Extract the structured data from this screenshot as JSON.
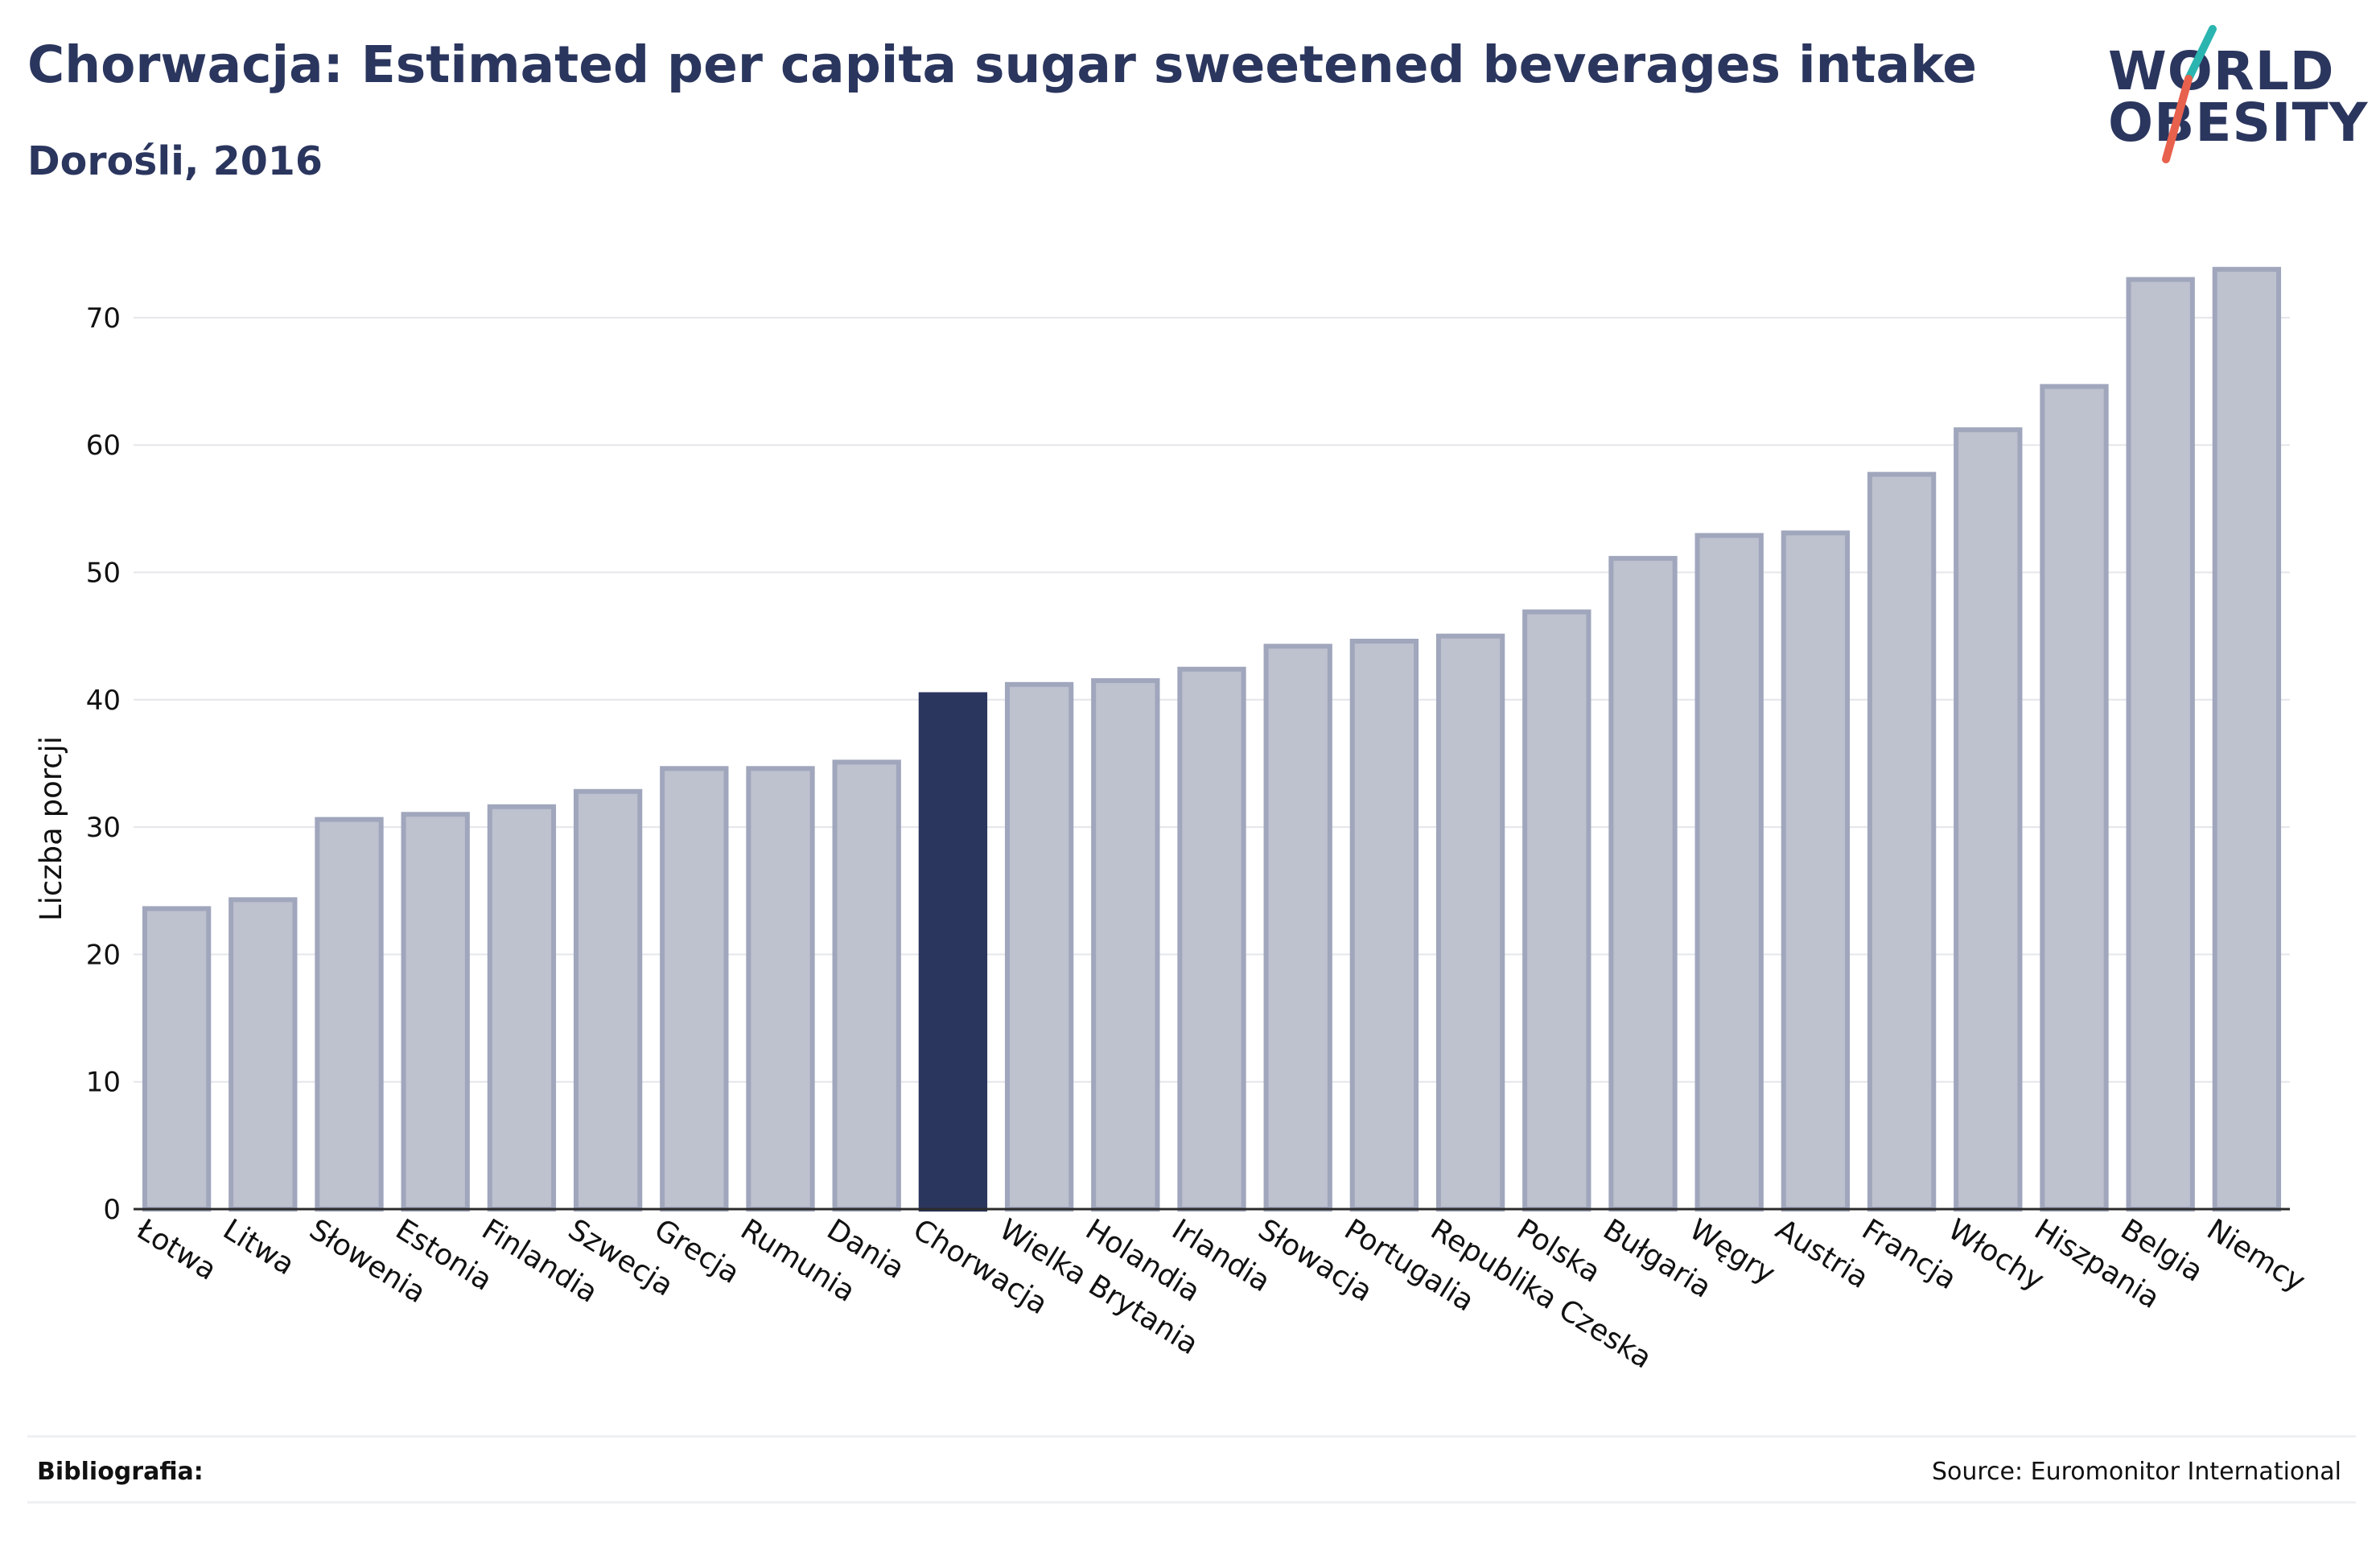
{
  "header": {
    "title": "Chorwacja: Estimated per capita sugar sweetened beverages intake",
    "subtitle": "Dorośli, 2016"
  },
  "logo": {
    "line1": "WORLD",
    "line2": "OBESITY",
    "colors": {
      "text": "#2b365e",
      "slash_top": "#2bb5b0",
      "slash_bottom": "#e8614d"
    }
  },
  "footer": {
    "bibliography_label": "Bibliografia:",
    "source": "Source: Euromonitor International"
  },
  "colors": {
    "highlight_bar": "#2b365e",
    "other_bar_fill": "#bec1ce",
    "other_bar_stroke": "#a0a6bc",
    "gridline": "#e4e6eb",
    "axis": "#2b2b2b",
    "text": "#111111"
  },
  "chart_data": {
    "type": "bar",
    "ylabel": "Liczba porcji",
    "xlabel": "",
    "ylim": [
      0,
      77
    ],
    "yticks": [
      0,
      10,
      20,
      30,
      40,
      50,
      60,
      70
    ],
    "grid": true,
    "highlight": "Chorwacja",
    "categories": [
      "Łotwa",
      "Litwa",
      "Słowenia",
      "Estonia",
      "Finlandia",
      "Szwecja",
      "Grecja",
      "Rumunia",
      "Dania",
      "Chorwacja",
      "Wielka Brytania",
      "Holandia",
      "Irlandia",
      "Słowacja",
      "Portugalia",
      "Republika Czeska",
      "Polska",
      "Bułgaria",
      "Węgry",
      "Austria",
      "Francja",
      "Włochy",
      "Hiszpania",
      "Belgia",
      "Niemcy"
    ],
    "values": [
      23.6,
      24.3,
      30.6,
      31.0,
      31.6,
      32.8,
      34.6,
      34.6,
      35.1,
      40.4,
      41.2,
      41.5,
      42.4,
      44.2,
      44.6,
      45.0,
      46.9,
      51.1,
      52.9,
      53.1,
      57.7,
      61.2,
      64.6,
      73.0,
      73.8
    ]
  }
}
